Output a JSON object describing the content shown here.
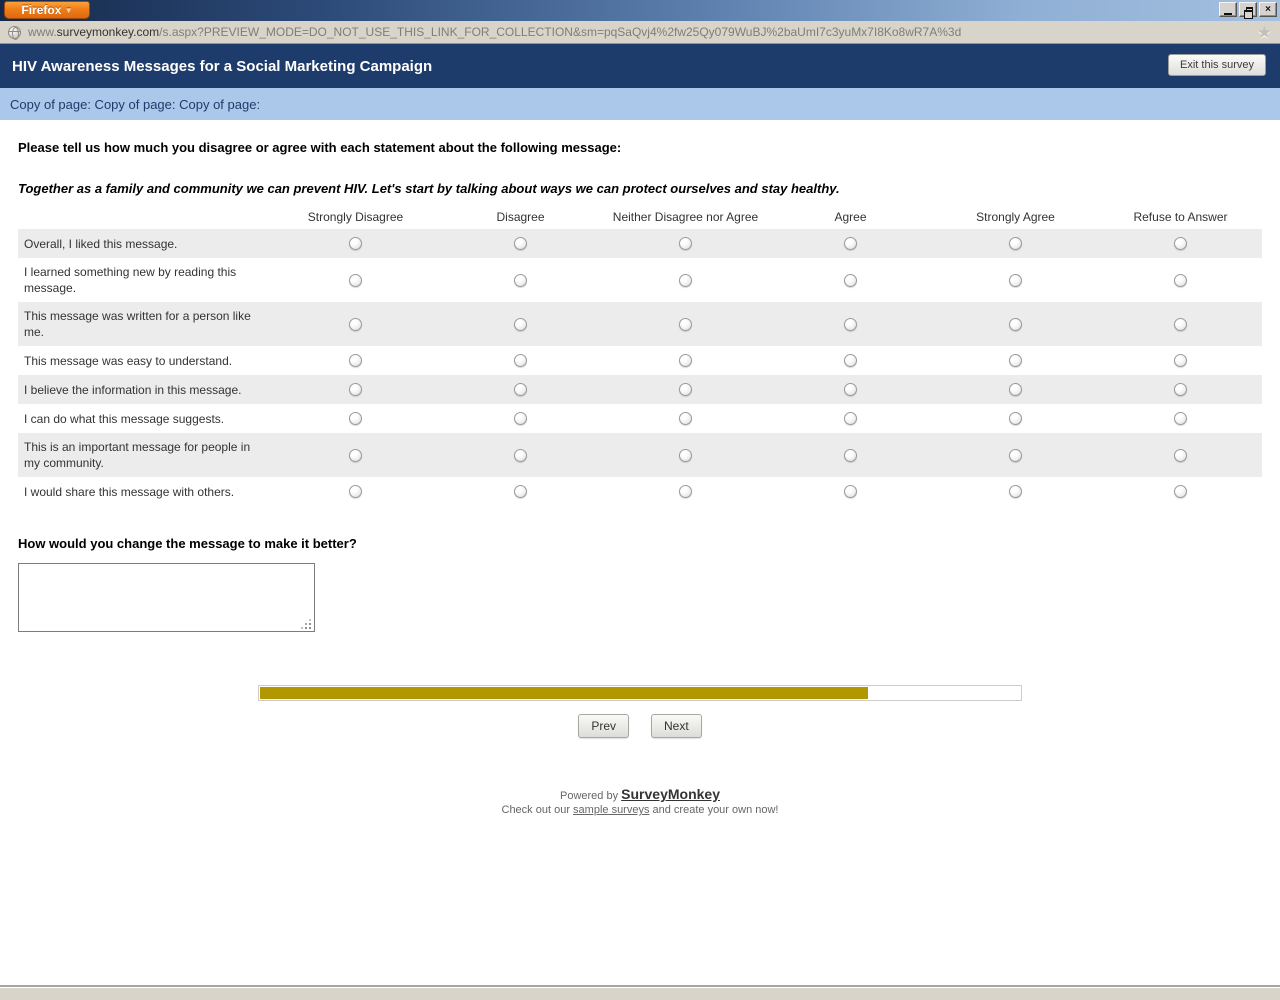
{
  "browser": {
    "firefox_button_label": "Firefox",
    "url_prefix": "www.",
    "url_domain": "surveymonkey.com",
    "url_rest": "/s.aspx?PREVIEW_MODE=DO_NOT_USE_THIS_LINK_FOR_COLLECTION&sm=pqSaQvj4%2fw25Qy079WuBJ%2baUmI7c3yuMx7I8Ko8wR7A%3d"
  },
  "survey": {
    "title": "HIV Awareness Messages for a Social Marketing Campaign",
    "exit_button_label": "Exit this survey",
    "page_title": "Copy of page: Copy of page: Copy of page:"
  },
  "question1": {
    "title": "Please tell us how much you disagree or agree with each statement about the following message:",
    "statement": "Together as a family and community we can prevent HIV. Let's start by talking about ways we can protect ourselves and stay healthy.",
    "columns": [
      "Strongly Disagree",
      "Disagree",
      "Neither Disagree nor Agree",
      "Agree",
      "Strongly Agree",
      "Refuse to Answer"
    ],
    "rows": [
      "Overall, I liked this message.",
      "I learned something new by reading this message.",
      "This message was written for a person like me.",
      "This message was easy to understand.",
      "I believe the information in this message.",
      "I can do what this message suggests.",
      "This is an important message for people in my community.",
      "I would share this message with others."
    ],
    "selected": null
  },
  "question2": {
    "title": "How would you change the message to make it better?",
    "value": "",
    "placeholder": ""
  },
  "progress": {
    "percent": 80
  },
  "nav": {
    "prev_label": "Prev",
    "next_label": "Next"
  },
  "footer": {
    "powered_prefix": "Powered by ",
    "brand": "SurveyMonkey",
    "tagline_prefix": "Check out our ",
    "sample_link": "sample surveys",
    "tagline_suffix": " and create your own now!"
  },
  "colors": {
    "header_navy": "#1e3c6b",
    "page_band_blue": "#abc7e9",
    "progress_gold": "#b29700",
    "row_alt_gray": "#ececec",
    "firefox_orange": "#ef7d18"
  }
}
